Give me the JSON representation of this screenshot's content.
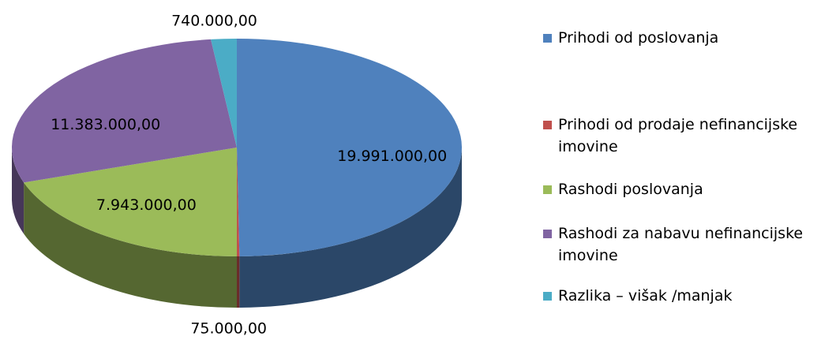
{
  "chart_data": {
    "type": "pie",
    "categories": [
      "Prihodi od poslovanja",
      "Prihodi od prodaje nefinancijske imovine",
      "Rashodi poslovanja",
      "Rashodi za nabavu nefinancijske imovine",
      "Razlika – višak /manjak"
    ],
    "values": [
      19991000,
      75000,
      7943000,
      11383000,
      740000
    ],
    "value_labels": [
      "19.991.000,00",
      "75.000,00",
      "7.943.000,00",
      "11.383.000,00",
      "740.000,00"
    ],
    "colors": [
      "#4f81bd",
      "#c0504d",
      "#9bbb59",
      "#8064a2",
      "#4bacc6"
    ],
    "legend": "right"
  }
}
